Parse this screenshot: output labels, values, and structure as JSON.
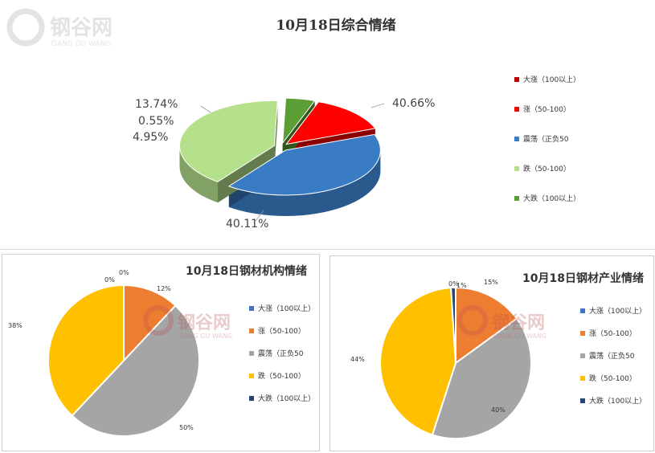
{
  "watermark": {
    "logo_text": "钢谷网",
    "logo_sub": "GANG GU WANG"
  },
  "legend_labels": [
    "大涨（100以上）",
    "涨（50-100）",
    "震荡（正负50）",
    "跌（50-100）",
    "大跌（100以上）"
  ],
  "chart_data": [
    {
      "type": "pie",
      "style": "3d-exploded",
      "title": "10月18日综合情绪",
      "legend_position": "right",
      "slices": [
        {
          "label": "大涨（100以上）",
          "value": 0,
          "display": "",
          "color": "#C00000"
        },
        {
          "label": "涨（50-100）",
          "value": 13.74,
          "display": "13.74%",
          "color": "#FF0000"
        },
        {
          "label": "震荡（正负50",
          "value": 40.66,
          "display": "40.66%",
          "color": "#3A7CC4"
        },
        {
          "label": "跌（50-100）",
          "value": 40.11,
          "display": "40.11%",
          "color": "#B5E08C"
        },
        {
          "label": "大跌（100以上）",
          "value": 4.95,
          "display": "4.95%",
          "color": "#5A9E35"
        }
      ],
      "extra_label": "0.55%"
    },
    {
      "type": "pie",
      "title": "10月18日钢材机构情绪",
      "legend_position": "right",
      "slices": [
        {
          "label": "大涨（100以上）",
          "value": 0,
          "display": "0%",
          "color": "#4472C4"
        },
        {
          "label": "涨（50-100）",
          "value": 12,
          "display": "12%",
          "color": "#ED7D31"
        },
        {
          "label": "震荡（正负50",
          "value": 50,
          "display": "50%",
          "color": "#A5A5A5"
        },
        {
          "label": "跌（50-100）",
          "value": 38,
          "display": "38%",
          "color": "#FFC000"
        },
        {
          "label": "大跌（100以上）",
          "value": 0,
          "display": "0%",
          "color": "#264478"
        }
      ]
    },
    {
      "type": "pie",
      "title": "10月18日钢材产业情绪",
      "legend_position": "right",
      "slices": [
        {
          "label": "大涨（100以上）",
          "value": 0,
          "display": "0%",
          "color": "#4472C4"
        },
        {
          "label": "涨（50-100）",
          "value": 15,
          "display": "15%",
          "color": "#ED7D31"
        },
        {
          "label": "震荡（正负50",
          "value": 40,
          "display": "40%",
          "color": "#A5A5A5"
        },
        {
          "label": "跌（50-100）",
          "value": 44,
          "display": "44%",
          "color": "#FFC000"
        },
        {
          "label": "大跌（100以上）",
          "value": 1,
          "display": "1%",
          "color": "#264478"
        }
      ]
    }
  ]
}
